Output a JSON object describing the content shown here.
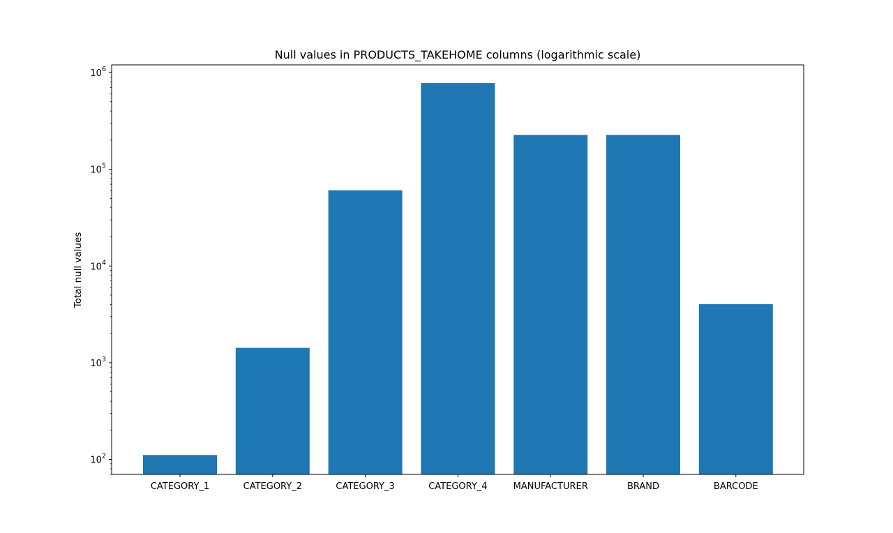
{
  "chart_data": {
    "type": "bar",
    "title": "Null values in PRODUCTS_TAKEHOME columns (logarithmic scale)",
    "xlabel": "",
    "ylabel": "Total null values",
    "yscale": "log",
    "ylim": [
      70,
      1200000
    ],
    "grid": false,
    "legend": "none",
    "bar_color": "#1f77b4",
    "categories": [
      "CATEGORY_1",
      "CATEGORY_2",
      "CATEGORY_3",
      "CATEGORY_4",
      "MANUFACTURER",
      "BRAND",
      "BARCODE"
    ],
    "values": [
      111,
      1424,
      60566,
      778093,
      226474,
      226472,
      4025
    ],
    "y_ticks": [
      {
        "value": 100,
        "base": "10",
        "exp": "2"
      },
      {
        "value": 1000,
        "base": "10",
        "exp": "3"
      },
      {
        "value": 10000,
        "base": "10",
        "exp": "4"
      },
      {
        "value": 100000,
        "base": "10",
        "exp": "5"
      },
      {
        "value": 1000000,
        "base": "10",
        "exp": "6"
      }
    ]
  }
}
